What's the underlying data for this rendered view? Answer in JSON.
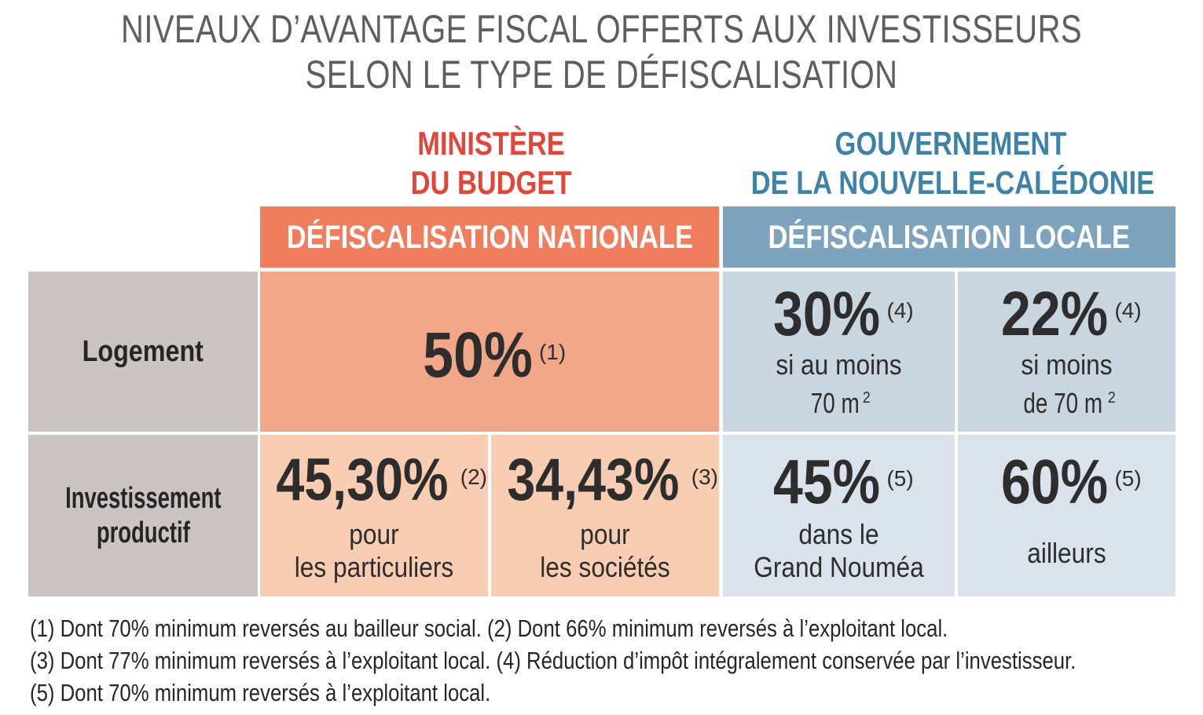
{
  "title": {
    "line1": "NIVEAUX D’AVANTAGE FISCAL OFFERTS AUX INVESTISSEURS",
    "line2": "SELON LE TYPE DE DÉFISCALISATION"
  },
  "colors": {
    "title": "#5e5e5e",
    "ministry": "#e0463a",
    "government": "#3e82a5",
    "national_band": "#ef7d5e",
    "local_band": "#7ea3bc",
    "national_cell_dark": "#f2a789",
    "national_cell_light": "#f9cdb1",
    "local_cell_dark": "#c9d6e0",
    "local_cell_light": "#dae2ec",
    "row_label": "#ccc3c3"
  },
  "chart_data": {
    "type": "table",
    "authorities": [
      {
        "line1": "MINISTÈRE",
        "line2": "DU BUDGET"
      },
      {
        "line1": "GOUVERNEMENT",
        "line2": "DE LA NOUVELLE-CALÉDONIE"
      }
    ],
    "columns": [
      "DÉFISCALISATION NATIONALE",
      "DÉFISCALISATION LOCALE"
    ],
    "rows": [
      {
        "label": "Logement",
        "national": {
          "value": "50%",
          "note": "(1)"
        },
        "local": [
          {
            "value": "30%",
            "note": "(4)",
            "desc1": "si au moins",
            "desc2": "70 m",
            "sup": "2"
          },
          {
            "value": "22%",
            "note": "(4)",
            "desc1": "si moins",
            "desc2": "de 70 m",
            "sup": "2"
          }
        ]
      },
      {
        "label1": "Investissement",
        "label2": "productif",
        "national": [
          {
            "value": "45,30%",
            "note": "(2)",
            "desc1": "pour",
            "desc2": "les particuliers"
          },
          {
            "value": "34,43%",
            "note": "(3)",
            "desc1": "pour",
            "desc2": "les sociétés"
          }
        ],
        "local": [
          {
            "value": "45%",
            "note": "(5)",
            "desc1": "dans le",
            "desc2": "Grand Nouméa"
          },
          {
            "value": "60%",
            "note": "(5)",
            "desc1": "ailleurs"
          }
        ]
      }
    ],
    "footnotes": [
      "(1) Dont 70% minimum reversés au bailleur social. (2) Dont 66% minimum reversés à l’exploitant local.",
      "(3) Dont 77% minimum reversés à l’exploitant local. (4) Réduction d’impôt intégralement conservée par l’investisseur.",
      "(5) Dont 70% minimum reversés à l’exploitant local."
    ]
  }
}
